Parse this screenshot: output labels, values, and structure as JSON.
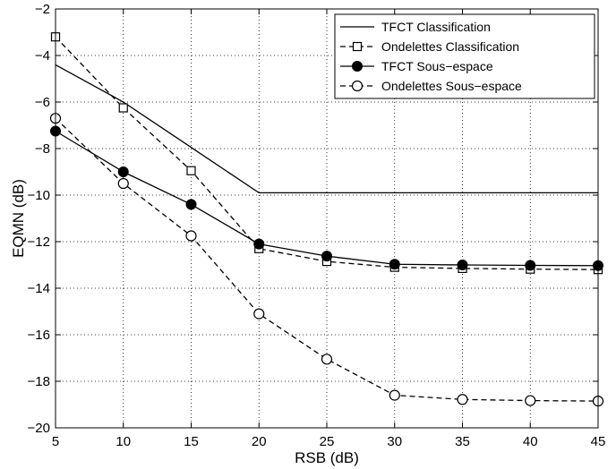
{
  "chart_data": {
    "type": "line",
    "title": "",
    "xlabel": "RSB (dB)",
    "ylabel": "EQMN (dB)",
    "xlim": [
      5,
      45
    ],
    "ylim": [
      -20,
      -2
    ],
    "xticks": [
      5,
      10,
      15,
      20,
      25,
      30,
      35,
      40,
      45
    ],
    "yticks": [
      -2,
      -4,
      -6,
      -8,
      -10,
      -12,
      -14,
      -16,
      -18,
      -20
    ],
    "xtick_labels": [
      "5",
      "10",
      "15",
      "20",
      "25",
      "30",
      "35",
      "40",
      "45"
    ],
    "ytick_labels": [
      "−2",
      "−4",
      "−6",
      "−8",
      "−10",
      "−12",
      "−14",
      "−16",
      "−18",
      "−20"
    ],
    "grid": true,
    "legend_position": "top-right",
    "x": [
      5,
      10,
      15,
      20,
      25,
      30,
      35,
      40,
      45
    ],
    "series": [
      {
        "name": "TFCT Classification",
        "values": [
          -4.4,
          -6.0,
          -7.95,
          -9.9,
          -9.9,
          -9.9,
          -9.9,
          -9.9,
          -9.9
        ],
        "line": "solid",
        "marker": "none"
      },
      {
        "name": "Ondelettes Classification",
        "values": [
          -3.2,
          -6.25,
          -8.95,
          -12.3,
          -12.85,
          -13.1,
          -13.15,
          -13.18,
          -13.2
        ],
        "line": "dashed",
        "marker": "square"
      },
      {
        "name": "TFCT Sous−espace",
        "values": [
          -7.25,
          -9.0,
          -10.4,
          -12.1,
          -12.62,
          -12.97,
          -13.0,
          -13.02,
          -13.03
        ],
        "line": "solid",
        "marker": "filled-circle"
      },
      {
        "name": "Ondelettes Sous−espace",
        "values": [
          -6.7,
          -9.5,
          -11.75,
          -15.1,
          -17.05,
          -18.6,
          -18.78,
          -18.83,
          -18.85
        ],
        "line": "dashed",
        "marker": "open-circle"
      }
    ]
  }
}
